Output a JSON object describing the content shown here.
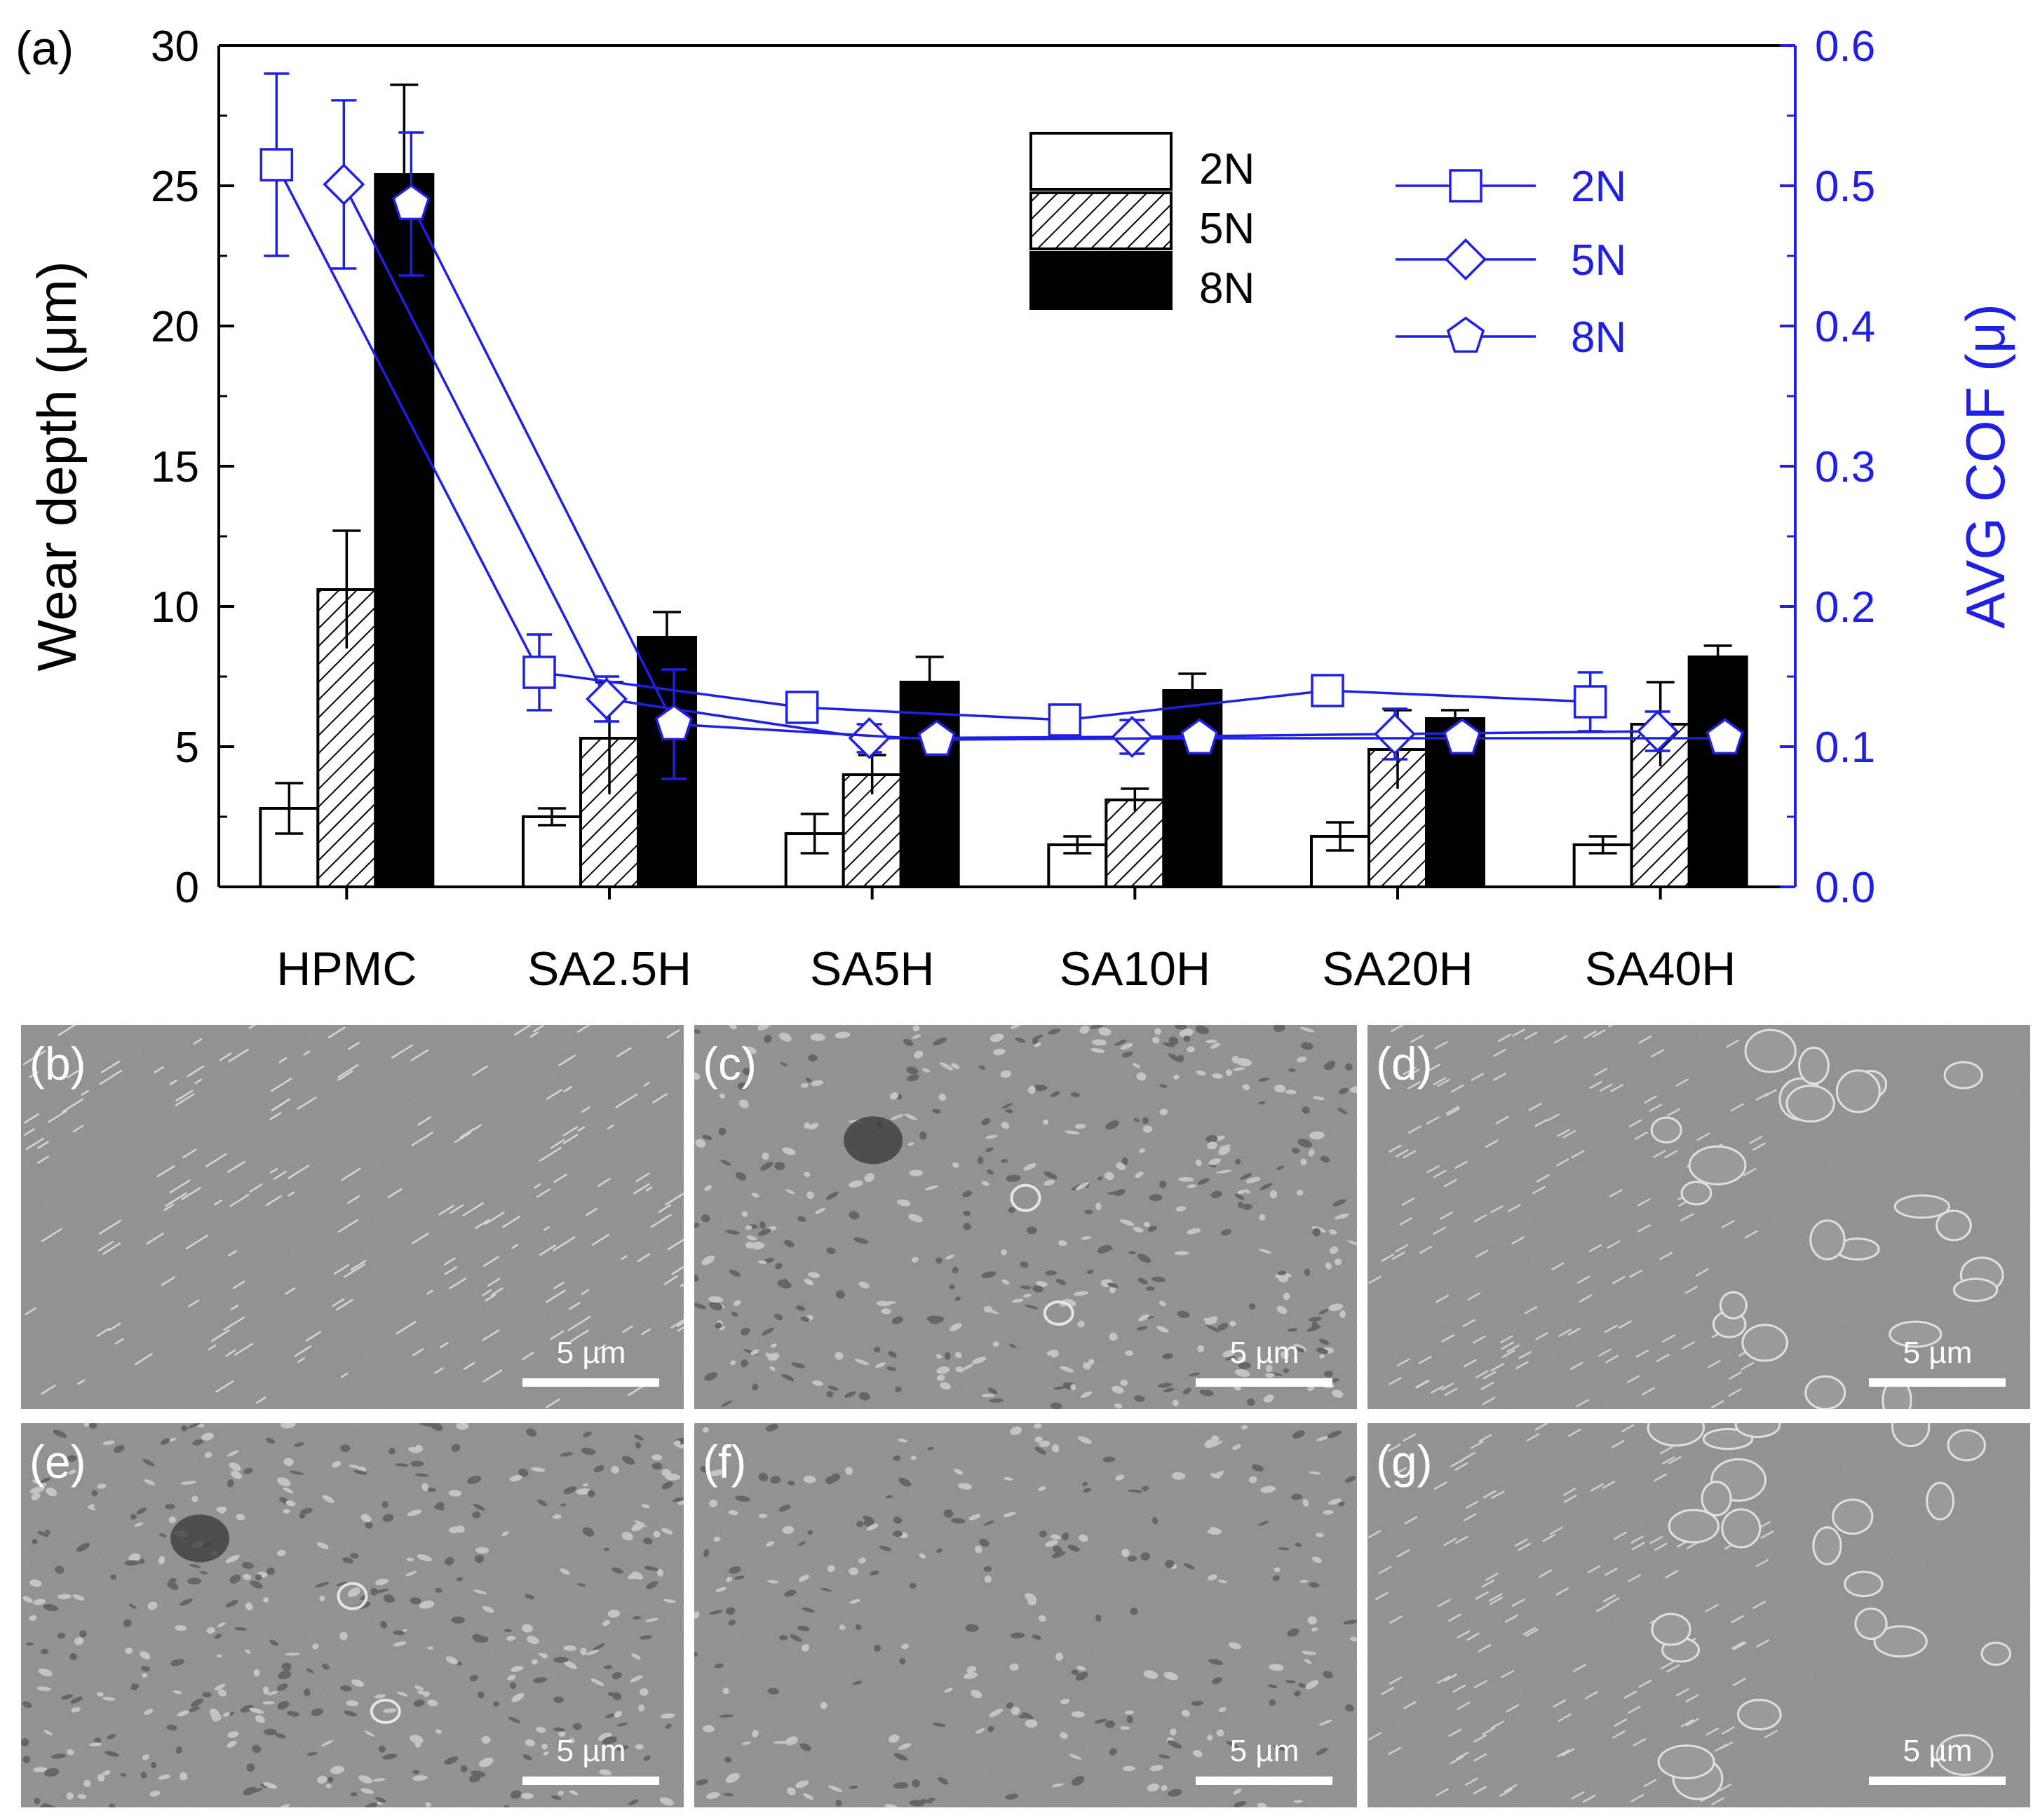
{
  "chart_data": {
    "type": "bar",
    "panel_label": "(a)",
    "categories": [
      "HPMC",
      "SA2.5H",
      "SA5H",
      "SA10H",
      "SA20H",
      "SA40H"
    ],
    "ylabel_left": "Wear depth (μm)",
    "ylabel_right": "AVG COF (μ)",
    "ylim_left": [
      0,
      30
    ],
    "ylim_right": [
      0,
      0.6
    ],
    "yticks_left": [
      "0",
      "5",
      "10",
      "15",
      "20",
      "25",
      "30"
    ],
    "yticks_right": [
      "0.0",
      "0.1",
      "0.2",
      "0.3",
      "0.4",
      "0.5",
      "0.6"
    ],
    "bar_series": [
      {
        "name": "2N",
        "fill": "white",
        "values": [
          2.8,
          2.5,
          1.9,
          1.5,
          1.8,
          1.5
        ],
        "errors": [
          0.9,
          0.3,
          0.7,
          0.3,
          0.5,
          0.3
        ]
      },
      {
        "name": "5N",
        "fill": "hatched",
        "values": [
          10.6,
          5.3,
          4.0,
          3.1,
          4.9,
          5.8
        ],
        "errors": [
          2.1,
          2.0,
          0.7,
          0.4,
          1.4,
          1.5
        ]
      },
      {
        "name": "8N",
        "fill": "black",
        "values": [
          25.4,
          8.9,
          7.3,
          7.0,
          6.0,
          8.2
        ],
        "errors": [
          3.2,
          0.9,
          0.9,
          0.6,
          0.3,
          0.4
        ]
      }
    ],
    "line_series": [
      {
        "name": "2N",
        "marker": "square",
        "values": [
          0.515,
          0.153,
          0.128,
          0.119,
          0.14,
          0.132
        ],
        "errors": [
          0.065,
          0.027,
          0.01,
          0.008,
          0.0,
          0.021
        ]
      },
      {
        "name": "5N",
        "marker": "diamond",
        "values": [
          0.501,
          0.134,
          0.106,
          0.107,
          0.109,
          0.111
        ],
        "errors": [
          0.06,
          0.016,
          0.01,
          0.012,
          0.018,
          0.014
        ]
      },
      {
        "name": "8N",
        "marker": "pentagon",
        "values": [
          0.487,
          0.116,
          0.105,
          0.106,
          0.106,
          0.106
        ],
        "errors": [
          0.051,
          0.039,
          0.005,
          0.005,
          0.004,
          0.004
        ]
      }
    ],
    "colors": {
      "axis": "#000000",
      "cof": "#1f1fe6",
      "bar_2n": "#ffffff",
      "bar_8n": "#000000"
    }
  },
  "sem_panels": [
    {
      "label": "(b)",
      "scale": "5 µm"
    },
    {
      "label": "(c)",
      "scale": "5 µm"
    },
    {
      "label": "(d)",
      "scale": "5 µm"
    },
    {
      "label": "(e)",
      "scale": "5 µm"
    },
    {
      "label": "(f)",
      "scale": "5 µm"
    },
    {
      "label": "(g)",
      "scale": "5 µm"
    }
  ]
}
